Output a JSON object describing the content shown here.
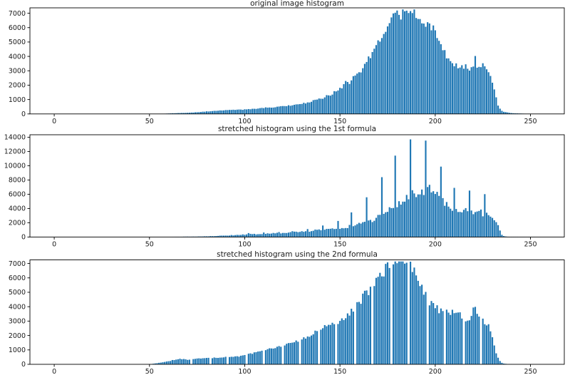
{
  "figure": {
    "background": "#ffffff",
    "bar_color": "#1f77b4",
    "axis_color": "#000000",
    "tick_label_color": "#1a1a1a"
  },
  "chart_data": [
    {
      "id": "original-histogram",
      "type": "bar",
      "title": "original image histogram",
      "xlabel": "",
      "ylabel": "",
      "xlim": [
        -12.75,
        267.75
      ],
      "ylim": [
        0,
        7375
      ],
      "x_ticks": [
        0,
        50,
        100,
        150,
        200,
        250
      ],
      "y_ticks": [
        0,
        1000,
        2000,
        3000,
        4000,
        5000,
        6000,
        7000
      ],
      "bins": 256,
      "noise": 0.07,
      "envelope": [
        [
          56,
          0
        ],
        [
          58,
          15
        ],
        [
          60,
          30
        ],
        [
          62,
          45
        ],
        [
          64,
          55
        ],
        [
          66,
          65
        ],
        [
          68,
          70
        ],
        [
          70,
          80
        ],
        [
          72,
          95
        ],
        [
          74,
          110
        ],
        [
          76,
          130
        ],
        [
          78,
          150
        ],
        [
          80,
          170
        ],
        [
          82,
          190
        ],
        [
          84,
          210
        ],
        [
          86,
          230
        ],
        [
          88,
          245
        ],
        [
          90,
          255
        ],
        [
          92,
          265
        ],
        [
          94,
          275
        ],
        [
          96,
          285
        ],
        [
          98,
          295
        ],
        [
          100,
          305
        ],
        [
          104,
          340
        ],
        [
          108,
          400
        ],
        [
          112,
          450
        ],
        [
          116,
          480
        ],
        [
          120,
          520
        ],
        [
          124,
          580
        ],
        [
          128,
          650
        ],
        [
          132,
          760
        ],
        [
          136,
          900
        ],
        [
          140,
          1080
        ],
        [
          144,
          1280
        ],
        [
          148,
          1600
        ],
        [
          150,
          1780
        ],
        [
          152,
          2000
        ],
        [
          153,
          2250
        ],
        [
          154,
          2150
        ],
        [
          156,
          2300
        ],
        [
          158,
          2650
        ],
        [
          160,
          2900
        ],
        [
          162,
          3200
        ],
        [
          163,
          3500
        ],
        [
          164,
          3600
        ],
        [
          166,
          3900
        ],
        [
          168,
          4300
        ],
        [
          170,
          4800
        ],
        [
          172,
          5300
        ],
        [
          174,
          5800
        ],
        [
          176,
          6300
        ],
        [
          177,
          6700
        ],
        [
          178,
          7000
        ],
        [
          180,
          6900
        ],
        [
          181,
          6800
        ],
        [
          182,
          6900
        ],
        [
          183,
          7000
        ],
        [
          184,
          6900
        ],
        [
          185,
          6800
        ],
        [
          186,
          6900
        ],
        [
          187,
          6850
        ],
        [
          188,
          7000
        ],
        [
          189,
          6950
        ],
        [
          190,
          6900
        ],
        [
          191,
          6750
        ],
        [
          192,
          6800
        ],
        [
          193,
          6600
        ],
        [
          194,
          6500
        ],
        [
          195,
          6400
        ],
        [
          196,
          6300
        ],
        [
          197,
          6150
        ],
        [
          198,
          6000
        ],
        [
          199,
          5800
        ],
        [
          200,
          5600
        ],
        [
          201,
          5300
        ],
        [
          202,
          5000
        ],
        [
          203,
          4750
        ],
        [
          204,
          4500
        ],
        [
          205,
          4300
        ],
        [
          206,
          4100
        ],
        [
          207,
          3900
        ],
        [
          208,
          3700
        ],
        [
          209,
          3550
        ],
        [
          210,
          3450
        ],
        [
          211,
          3400
        ],
        [
          212,
          3400
        ],
        [
          213,
          3450
        ],
        [
          214,
          3400
        ],
        [
          215,
          3350
        ],
        [
          216,
          3300
        ],
        [
          217,
          3200
        ],
        [
          218,
          3050
        ],
        [
          219,
          3100
        ],
        [
          220,
          3250
        ],
        [
          221,
          3800
        ],
        [
          222,
          3350
        ],
        [
          223,
          3300
        ],
        [
          224,
          3350
        ],
        [
          225,
          3400
        ],
        [
          226,
          3350
        ],
        [
          227,
          3200
        ],
        [
          228,
          2800
        ],
        [
          229,
          2500
        ],
        [
          230,
          2250
        ],
        [
          231,
          1800
        ],
        [
          232,
          1100
        ],
        [
          233,
          600
        ],
        [
          234,
          350
        ],
        [
          235,
          220
        ],
        [
          236,
          150
        ],
        [
          238,
          100
        ],
        [
          240,
          60
        ],
        [
          242,
          40
        ],
        [
          245,
          25
        ],
        [
          248,
          12
        ],
        [
          250,
          6
        ],
        [
          253,
          0
        ]
      ],
      "spikes": [],
      "empty_bins": []
    },
    {
      "id": "stretched-1st-formula",
      "type": "bar",
      "title": "stretched histogram using the 1st formula",
      "xlabel": "",
      "ylabel": "",
      "xlim": [
        -12.75,
        267.75
      ],
      "ylim": [
        0,
        14350
      ],
      "x_ticks": [
        0,
        50,
        100,
        150,
        200,
        250
      ],
      "y_ticks": [
        0,
        2000,
        4000,
        6000,
        8000,
        10000,
        12000,
        14000
      ],
      "bins": 256,
      "noise": 0.14,
      "envelope": [
        [
          60,
          0
        ],
        [
          63,
          30
        ],
        [
          66,
          50
        ],
        [
          70,
          60
        ],
        [
          74,
          70
        ],
        [
          78,
          90
        ],
        [
          82,
          120
        ],
        [
          86,
          170
        ],
        [
          90,
          220
        ],
        [
          94,
          270
        ],
        [
          98,
          330
        ],
        [
          102,
          400
        ],
        [
          106,
          420
        ],
        [
          110,
          470
        ],
        [
          114,
          500
        ],
        [
          118,
          540
        ],
        [
          122,
          600
        ],
        [
          126,
          670
        ],
        [
          130,
          750
        ],
        [
          134,
          850
        ],
        [
          138,
          950
        ],
        [
          142,
          1050
        ],
        [
          146,
          1150
        ],
        [
          150,
          1300
        ],
        [
          154,
          1450
        ],
        [
          158,
          1650
        ],
        [
          162,
          1900
        ],
        [
          166,
          2300
        ],
        [
          170,
          2800
        ],
        [
          174,
          3400
        ],
        [
          178,
          4100
        ],
        [
          182,
          4900
        ],
        [
          186,
          5700
        ],
        [
          189,
          6200
        ],
        [
          192,
          6500
        ],
        [
          195,
          6600
        ],
        [
          197,
          6500
        ],
        [
          199,
          6200
        ],
        [
          201,
          5800
        ],
        [
          203,
          5300
        ],
        [
          205,
          4800
        ],
        [
          207,
          4400
        ],
        [
          209,
          4000
        ],
        [
          211,
          3800
        ],
        [
          213,
          3700
        ],
        [
          215,
          3650
        ],
        [
          217,
          3700
        ],
        [
          219,
          3750
        ],
        [
          221,
          3700
        ],
        [
          223,
          3500
        ],
        [
          225,
          3300
        ],
        [
          227,
          3100
        ],
        [
          229,
          2900
        ],
        [
          231,
          2500
        ],
        [
          232,
          2200
        ],
        [
          233,
          1600
        ],
        [
          234,
          900
        ],
        [
          235,
          350
        ],
        [
          236,
          120
        ],
        [
          238,
          60
        ],
        [
          241,
          40
        ],
        [
          245,
          28
        ],
        [
          248,
          20
        ],
        [
          252,
          12
        ],
        [
          255,
          5
        ]
      ],
      "spikes": [
        [
          102,
          560
        ],
        [
          110,
          640
        ],
        [
          118,
          700
        ],
        [
          125,
          820
        ],
        [
          133,
          1120
        ],
        [
          141,
          1620
        ],
        [
          149,
          2260
        ],
        [
          156,
          3460
        ],
        [
          164,
          5580
        ],
        [
          172,
          8400
        ],
        [
          179,
          11420
        ],
        [
          187,
          13700
        ],
        [
          195,
          13530
        ],
        [
          203,
          9880
        ],
        [
          210,
          6900
        ],
        [
          218,
          6520
        ],
        [
          226,
          6020
        ]
      ],
      "empty_bins": []
    },
    {
      "id": "stretched-2nd-formula",
      "type": "bar",
      "title": "stretched histogram using the 2nd formula",
      "xlabel": "",
      "ylabel": "",
      "xlim": [
        -12.75,
        267.75
      ],
      "ylim": [
        0,
        7250
      ],
      "x_ticks": [
        0,
        50,
        100,
        150,
        200,
        250
      ],
      "y_ticks": [
        0,
        1000,
        2000,
        3000,
        4000,
        5000,
        6000,
        7000
      ],
      "bins": 256,
      "noise": 0.07,
      "envelope": [
        [
          50,
          0
        ],
        [
          52,
          40
        ],
        [
          54,
          80
        ],
        [
          56,
          120
        ],
        [
          58,
          160
        ],
        [
          60,
          210
        ],
        [
          62,
          280
        ],
        [
          64,
          350
        ],
        [
          66,
          380
        ],
        [
          68,
          350
        ],
        [
          70,
          330
        ],
        [
          72,
          360
        ],
        [
          74,
          380
        ],
        [
          76,
          400
        ],
        [
          78,
          410
        ],
        [
          80,
          420
        ],
        [
          84,
          450
        ],
        [
          88,
          480
        ],
        [
          92,
          500
        ],
        [
          96,
          540
        ],
        [
          100,
          640
        ],
        [
          104,
          760
        ],
        [
          108,
          900
        ],
        [
          112,
          1030
        ],
        [
          116,
          1130
        ],
        [
          120,
          1260
        ],
        [
          124,
          1420
        ],
        [
          128,
          1600
        ],
        [
          132,
          1850
        ],
        [
          136,
          2150
        ],
        [
          140,
          2500
        ],
        [
          144,
          2750
        ],
        [
          148,
          2870
        ],
        [
          150,
          2950
        ],
        [
          152,
          3200
        ],
        [
          154,
          3450
        ],
        [
          156,
          3650
        ],
        [
          158,
          3900
        ],
        [
          160,
          4300
        ],
        [
          162,
          4600
        ],
        [
          164,
          5000
        ],
        [
          166,
          5300
        ],
        [
          168,
          5700
        ],
        [
          170,
          5900
        ],
        [
          172,
          6300
        ],
        [
          174,
          6600
        ],
        [
          176,
          6850
        ],
        [
          178,
          6950
        ],
        [
          180,
          7000
        ],
        [
          182,
          6850
        ],
        [
          184,
          6950
        ],
        [
          186,
          6950
        ],
        [
          188,
          6800
        ],
        [
          190,
          6300
        ],
        [
          192,
          5800
        ],
        [
          194,
          5100
        ],
        [
          196,
          4600
        ],
        [
          198,
          4200
        ],
        [
          200,
          3950
        ],
        [
          202,
          3750
        ],
        [
          204,
          3600
        ],
        [
          206,
          3650
        ],
        [
          208,
          3600
        ],
        [
          210,
          3550
        ],
        [
          212,
          3600
        ],
        [
          214,
          3300
        ],
        [
          216,
          3050
        ],
        [
          218,
          3150
        ],
        [
          220,
          3750
        ],
        [
          221,
          3900
        ],
        [
          222,
          3400
        ],
        [
          224,
          3200
        ],
        [
          226,
          2950
        ],
        [
          228,
          2700
        ],
        [
          229,
          2400
        ],
        [
          230,
          1900
        ],
        [
          231,
          1300
        ],
        [
          232,
          800
        ],
        [
          233,
          450
        ],
        [
          234,
          220
        ],
        [
          235,
          100
        ],
        [
          236,
          50
        ],
        [
          238,
          20
        ],
        [
          240,
          8
        ],
        [
          243,
          0
        ]
      ],
      "spikes": [],
      "empty_bins": [
        72,
        82,
        91,
        101,
        110,
        120,
        129,
        139,
        148,
        158,
        167,
        177,
        186,
        196,
        205,
        215,
        224
      ]
    }
  ]
}
